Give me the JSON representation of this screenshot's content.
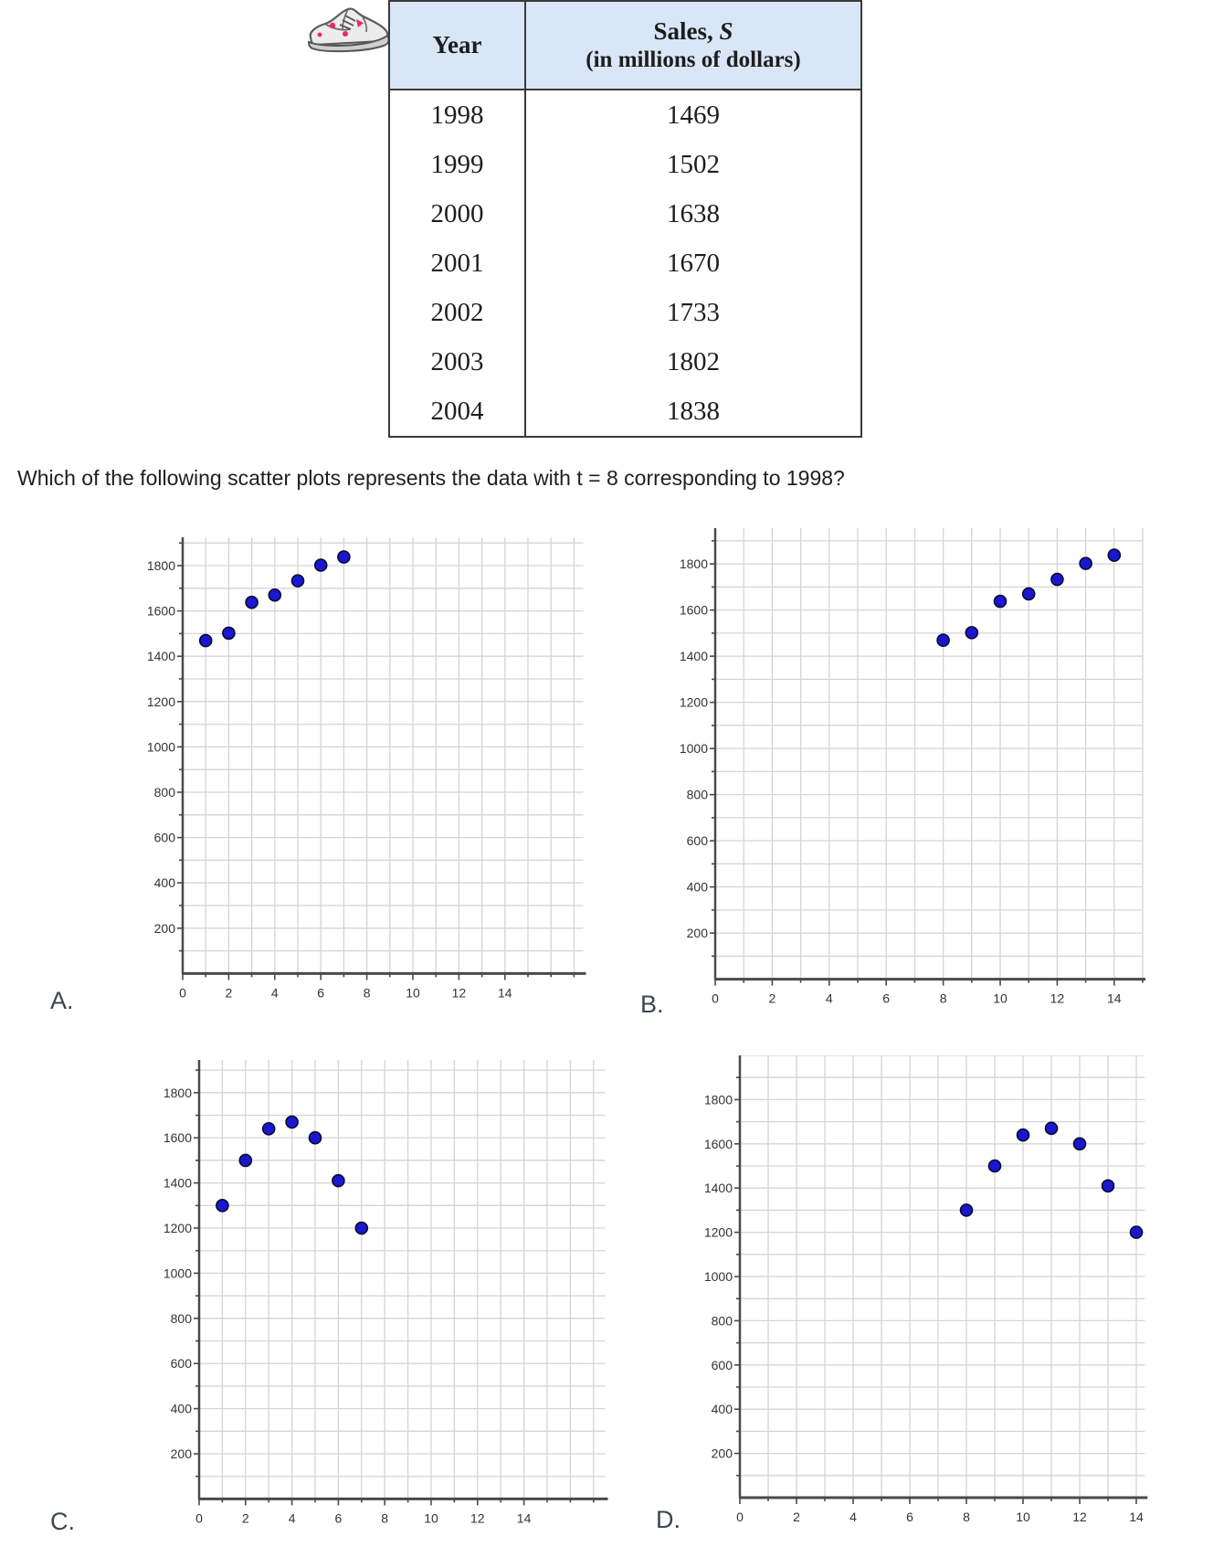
{
  "question": "Which of the following scatter plots represents the data with t = 8 corresponding to 1998?",
  "table": {
    "header": {
      "year_label": "Year",
      "sales_label_prefix": "Sales, ",
      "sales_label_var": "S",
      "sales_sub": "(in millions of dollars)"
    },
    "rows": [
      [
        "1998",
        "1469"
      ],
      [
        "1999",
        "1502"
      ],
      [
        "2000",
        "1638"
      ],
      [
        "2001",
        "1670"
      ],
      [
        "2002",
        "1733"
      ],
      [
        "2003",
        "1802"
      ],
      [
        "2004",
        "1838"
      ]
    ]
  },
  "icons": {
    "sneaker": "sneaker-icon"
  },
  "colors": {
    "dot_fill": "#1a17d0",
    "dot_stroke": "#0a0a30",
    "grid": "#d4d4d4",
    "axis": "#4a4a4a",
    "tick_text": "#333333",
    "table_header_bg": "#d9e6f7",
    "table_border": "#3a3a3a",
    "text": "#1f1f1f",
    "sneaker_accent_red": "#ee2b5e",
    "sneaker_gray": "#ececec"
  },
  "chart_data": [
    {
      "id": "A",
      "label": "A.",
      "type": "scatter",
      "title": "",
      "xlabel": "",
      "ylabel": "",
      "grid": true,
      "points": [
        [
          1,
          1469
        ],
        [
          2,
          1502
        ],
        [
          3,
          1638
        ],
        [
          4,
          1670
        ],
        [
          5,
          1733
        ],
        [
          6,
          1802
        ],
        [
          7,
          1838
        ]
      ],
      "xlim": [
        0,
        17.4
      ],
      "ylim": [
        0,
        1925
      ],
      "xticks": [
        0,
        2,
        4,
        6,
        8,
        10,
        12,
        14
      ],
      "yticks": [
        200,
        400,
        600,
        800,
        1000,
        1200,
        1400,
        1600,
        1800
      ],
      "x_grid_step": 1,
      "y_grid_step": 100
    },
    {
      "id": "B",
      "label": "B.",
      "type": "scatter",
      "title": "",
      "xlabel": "",
      "ylabel": "",
      "grid": true,
      "points": [
        [
          8,
          1469
        ],
        [
          9,
          1502
        ],
        [
          10,
          1638
        ],
        [
          11,
          1670
        ],
        [
          12,
          1733
        ],
        [
          13,
          1802
        ],
        [
          14,
          1838
        ]
      ],
      "xlim": [
        0,
        15.0
      ],
      "ylim": [
        0,
        1955
      ],
      "xticks": [
        0,
        2,
        4,
        6,
        8,
        10,
        12,
        14
      ],
      "yticks": [
        200,
        400,
        600,
        800,
        1000,
        1200,
        1400,
        1600,
        1800
      ],
      "x_grid_step": 1,
      "y_grid_step": 100
    },
    {
      "id": "C",
      "label": "C.",
      "type": "scatter",
      "title": "",
      "xlabel": "",
      "ylabel": "",
      "grid": true,
      "points": [
        [
          1,
          1300
        ],
        [
          2,
          1500
        ],
        [
          3,
          1640
        ],
        [
          4,
          1670
        ],
        [
          5,
          1600
        ],
        [
          6,
          1410
        ],
        [
          7,
          1200
        ]
      ],
      "xlim": [
        0,
        17.5
      ],
      "ylim": [
        0,
        1945
      ],
      "xticks": [
        0,
        2,
        4,
        6,
        8,
        10,
        12,
        14
      ],
      "yticks": [
        200,
        400,
        600,
        800,
        1000,
        1200,
        1400,
        1600,
        1800
      ],
      "x_grid_step": 1,
      "y_grid_step": 100
    },
    {
      "id": "D",
      "label": "D.",
      "type": "scatter",
      "title": "",
      "xlabel": "",
      "ylabel": "",
      "grid": true,
      "points": [
        [
          8,
          1300
        ],
        [
          9,
          1500
        ],
        [
          10,
          1640
        ],
        [
          11,
          1670
        ],
        [
          12,
          1600
        ],
        [
          13,
          1410
        ],
        [
          14,
          1200
        ]
      ],
      "xlim": [
        0,
        14.3
      ],
      "ylim": [
        0,
        2000
      ],
      "xticks": [
        0,
        2,
        4,
        6,
        8,
        10,
        12,
        14
      ],
      "yticks": [
        200,
        400,
        600,
        800,
        1000,
        1200,
        1400,
        1600,
        1800
      ],
      "x_grid_step": 1,
      "y_grid_step": 100
    }
  ]
}
